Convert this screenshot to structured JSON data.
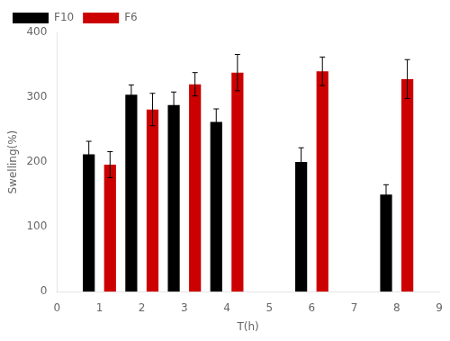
{
  "chart_data": {
    "type": "bar",
    "x": [
      1,
      2,
      3,
      4,
      6,
      8
    ],
    "series": [
      {
        "name": "F10",
        "color": "#000000",
        "values": [
          212,
          304,
          288,
          262,
          200,
          150
        ],
        "errors": [
          20,
          15,
          20,
          20,
          22,
          15
        ]
      },
      {
        "name": "F6",
        "color": "#cc0000",
        "values": [
          196,
          281,
          320,
          338,
          340,
          328
        ],
        "errors": [
          20,
          25,
          18,
          28,
          22,
          30
        ]
      }
    ],
    "xlabel": "T(h)",
    "ylabel": "Swelling(%)",
    "xlim": [
      0,
      9
    ],
    "ylim": [
      0,
      400
    ],
    "xticks": [
      0,
      1,
      2,
      3,
      4,
      5,
      6,
      7,
      8,
      9
    ],
    "yticks": [
      0,
      100,
      200,
      300,
      400
    ],
    "legend": "upper left",
    "grid": false
  }
}
